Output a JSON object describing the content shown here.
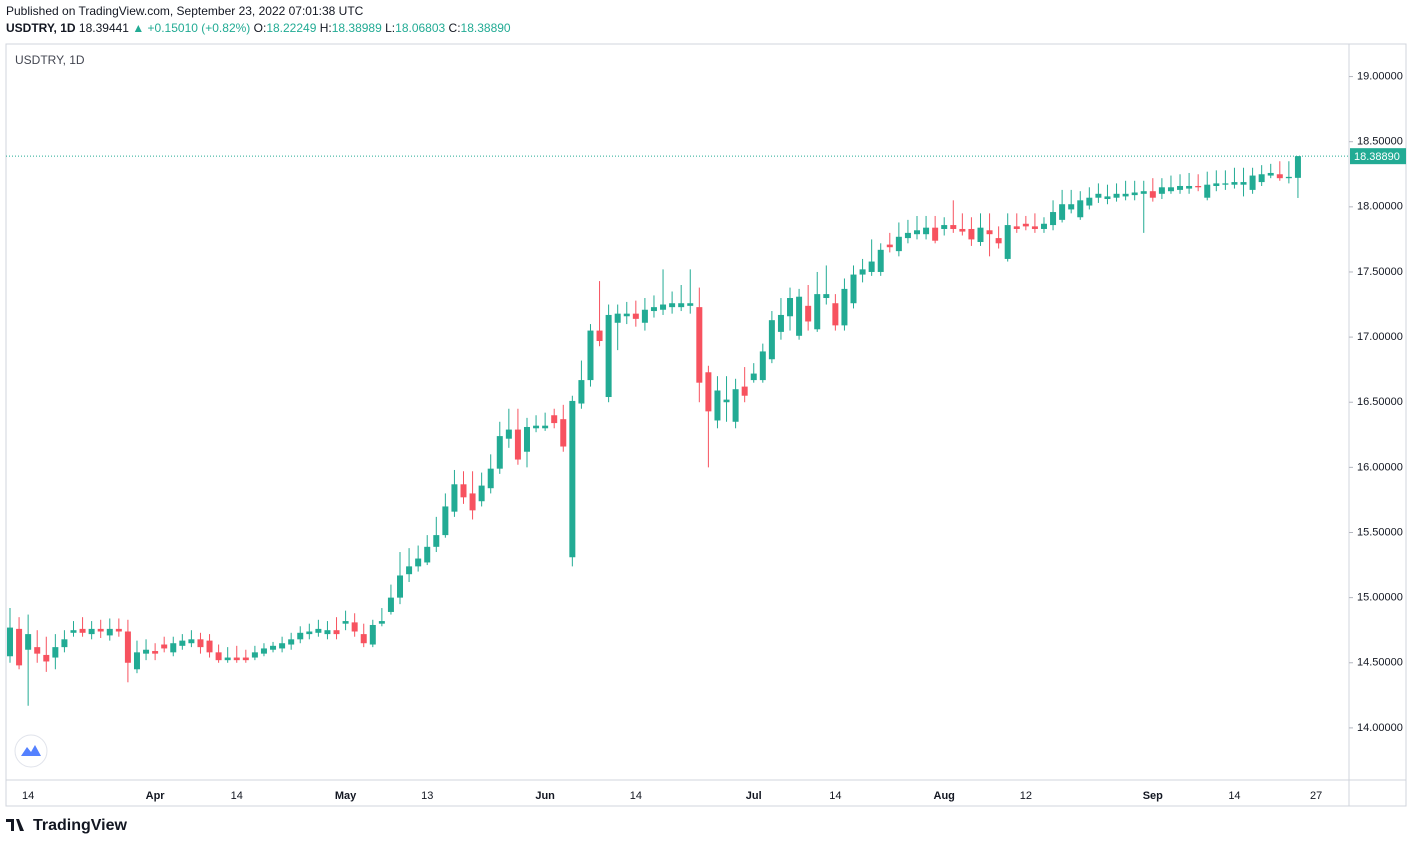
{
  "header": {
    "published": "Published on TradingView.com, September 23, 2022 07:01:38 UTC",
    "symbol": "USDTRY, 1D",
    "price": "18.39441",
    "change": "▲ +0.15010 (+0.82%)",
    "ohlc": [
      {
        "label": "O:",
        "value": "18.22249"
      },
      {
        "label": "H:",
        "value": "18.38989"
      },
      {
        "label": "L:",
        "value": "18.06803"
      },
      {
        "label": "C:",
        "value": "18.38890"
      }
    ]
  },
  "chart_data": {
    "type": "candlestick",
    "title": "USDTRY, 1D",
    "up_color": "#22ab94",
    "down_color": "#f7525f",
    "categories": [
      null,
      null,
      "14",
      null,
      null,
      null,
      null,
      null,
      null,
      null,
      null,
      null,
      null,
      null,
      null,
      null,
      "Apr",
      null,
      null,
      null,
      null,
      null,
      null,
      null,
      null,
      "14",
      null,
      null,
      null,
      null,
      null,
      null,
      null,
      null,
      null,
      null,
      null,
      "May",
      null,
      null,
      null,
      null,
      null,
      null,
      null,
      null,
      "13",
      null,
      null,
      null,
      null,
      null,
      null,
      null,
      null,
      null,
      null,
      null,
      null,
      "Jun",
      null,
      null,
      null,
      null,
      null,
      null,
      null,
      null,
      null,
      "14",
      null,
      null,
      null,
      null,
      null,
      null,
      null,
      null,
      null,
      null,
      null,
      null,
      "Jul",
      null,
      null,
      null,
      null,
      null,
      null,
      null,
      null,
      "14",
      null,
      null,
      null,
      null,
      null,
      null,
      null,
      null,
      null,
      null,
      null,
      "Aug",
      null,
      null,
      null,
      null,
      null,
      null,
      null,
      null,
      "12",
      null,
      null,
      null,
      null,
      null,
      null,
      null,
      null,
      null,
      null,
      null,
      null,
      null,
      "Sep",
      null,
      null,
      null,
      null,
      null,
      null,
      null,
      null,
      "14",
      null,
      null,
      null,
      null,
      null,
      null,
      null,
      null,
      "27"
    ],
    "open": [
      14.55,
      14.76,
      14.6,
      14.62,
      14.56,
      14.54,
      14.62,
      14.73,
      14.76,
      14.72,
      14.76,
      14.71,
      14.76,
      14.74,
      14.45,
      14.57,
      14.59,
      14.64,
      14.58,
      14.63,
      14.65,
      14.68,
      14.67,
      14.58,
      14.52,
      14.54,
      14.54,
      14.54,
      14.57,
      14.6,
      14.61,
      14.64,
      14.68,
      14.72,
      14.73,
      14.72,
      14.75,
      14.8,
      14.81,
      14.72,
      14.64,
      14.8,
      14.89,
      15.0,
      15.18,
      15.24,
      15.27,
      15.39,
      15.48,
      15.66,
      15.87,
      15.8,
      15.74,
      15.84,
      15.99,
      16.22,
      16.29,
      16.12,
      16.3,
      16.3,
      16.4,
      16.37,
      15.31,
      16.49,
      16.67,
      17.05,
      16.54,
      17.11,
      17.16,
      17.18,
      17.11,
      17.2,
      17.21,
      17.23,
      17.23,
      17.24,
      17.23,
      16.73,
      16.36,
      16.5,
      16.35,
      16.62,
      16.67,
      16.67,
      16.83,
      17.04,
      17.16,
      17.01,
      17.24,
      17.06,
      17.3,
      17.26,
      17.09,
      17.26,
      17.48,
      17.5,
      17.5,
      17.71,
      17.66,
      17.76,
      17.79,
      17.79,
      17.84,
      17.83,
      17.86,
      17.83,
      17.83,
      17.73,
      17.82,
      17.76,
      17.6,
      17.85,
      17.87,
      17.85,
      17.83,
      17.86,
      17.9,
      17.98,
      17.92,
      18.01,
      18.07,
      18.06,
      18.07,
      18.08,
      18.09,
      18.1,
      18.12,
      18.1,
      18.12,
      18.13,
      18.14,
      18.16,
      18.07,
      18.16,
      18.17,
      18.17,
      18.17,
      18.13,
      18.19,
      18.24,
      18.25,
      18.22,
      18.22249,
      null,
      null
    ],
    "high": [
      14.92,
      14.85,
      14.87,
      14.75,
      14.7,
      14.72,
      14.75,
      14.82,
      14.85,
      14.82,
      14.83,
      14.84,
      14.84,
      14.83,
      14.67,
      14.68,
      14.65,
      14.7,
      14.7,
      14.72,
      14.75,
      14.73,
      14.72,
      14.64,
      14.62,
      14.63,
      14.6,
      14.63,
      14.65,
      14.66,
      14.7,
      14.73,
      14.78,
      14.8,
      14.83,
      14.82,
      14.85,
      14.9,
      14.88,
      14.8,
      14.83,
      14.92,
      15.1,
      15.35,
      15.38,
      15.4,
      15.48,
      15.62,
      15.8,
      15.98,
      15.97,
      15.97,
      15.96,
      16.1,
      16.35,
      16.45,
      16.45,
      16.38,
      16.4,
      16.42,
      16.45,
      16.48,
      16.55,
      16.82,
      17.1,
      17.43,
      17.25,
      17.25,
      17.27,
      17.28,
      17.3,
      17.32,
      17.52,
      17.35,
      17.4,
      17.52,
      17.38,
      16.78,
      16.7,
      16.7,
      16.68,
      16.77,
      16.8,
      16.95,
      17.2,
      17.3,
      17.38,
      17.37,
      17.4,
      17.5,
      17.55,
      17.33,
      17.45,
      17.55,
      17.6,
      17.75,
      17.72,
      17.8,
      17.88,
      17.9,
      17.93,
      17.93,
      17.93,
      17.92,
      18.05,
      17.95,
      17.92,
      17.95,
      17.95,
      17.85,
      17.95,
      17.95,
      17.93,
      17.95,
      17.92,
      18.05,
      18.13,
      18.13,
      18.12,
      18.15,
      18.18,
      18.17,
      18.18,
      18.2,
      18.2,
      18.2,
      18.22,
      18.22,
      18.24,
      18.25,
      18.26,
      18.25,
      18.27,
      18.28,
      18.28,
      18.3,
      18.3,
      18.3,
      18.32,
      18.33,
      18.35,
      18.35,
      18.38989,
      null,
      null
    ],
    "low": [
      14.5,
      14.45,
      14.17,
      14.5,
      14.43,
      14.45,
      14.58,
      14.7,
      14.7,
      14.68,
      14.69,
      14.67,
      14.7,
      14.35,
      14.42,
      14.52,
      14.52,
      14.58,
      14.55,
      14.6,
      14.62,
      14.57,
      14.54,
      14.5,
      14.5,
      14.5,
      14.5,
      14.52,
      14.55,
      14.58,
      14.58,
      14.6,
      14.65,
      14.68,
      14.7,
      14.68,
      14.68,
      14.75,
      14.7,
      14.62,
      14.62,
      14.78,
      14.87,
      14.95,
      15.12,
      15.2,
      15.25,
      15.35,
      15.46,
      15.62,
      15.72,
      15.6,
      15.7,
      15.8,
      15.95,
      16.15,
      16.02,
      16.0,
      16.27,
      16.28,
      16.3,
      16.12,
      15.24,
      16.45,
      16.62,
      16.93,
      16.5,
      16.9,
      17.1,
      17.08,
      17.05,
      17.15,
      17.17,
      17.18,
      17.2,
      17.18,
      16.5,
      16.0,
      16.3,
      16.35,
      16.3,
      16.5,
      16.65,
      16.65,
      16.8,
      16.98,
      17.05,
      16.98,
      17.05,
      17.04,
      17.25,
      17.05,
      17.05,
      17.22,
      17.42,
      17.47,
      17.47,
      17.65,
      17.62,
      17.72,
      17.75,
      17.75,
      17.72,
      17.78,
      17.8,
      17.78,
      17.7,
      17.7,
      17.62,
      17.68,
      17.58,
      17.8,
      17.82,
      17.8,
      17.8,
      17.82,
      17.88,
      17.95,
      17.9,
      17.98,
      18.03,
      18.02,
      18.04,
      18.05,
      18.05,
      17.8,
      18.04,
      18.06,
      18.1,
      18.1,
      18.1,
      18.12,
      18.05,
      18.12,
      18.13,
      18.14,
      18.08,
      18.1,
      18.16,
      18.22,
      18.2,
      18.18,
      18.06803,
      null,
      null
    ],
    "close": [
      14.77,
      14.48,
      14.72,
      14.57,
      14.51,
      14.62,
      14.68,
      14.75,
      14.73,
      14.76,
      14.74,
      14.76,
      14.74,
      14.5,
      14.58,
      14.6,
      14.57,
      14.61,
      14.65,
      14.67,
      14.68,
      14.62,
      14.58,
      14.52,
      14.54,
      14.52,
      14.52,
      14.58,
      14.61,
      14.63,
      14.65,
      14.68,
      14.73,
      14.74,
      14.76,
      14.75,
      14.72,
      14.82,
      14.74,
      14.65,
      14.79,
      14.82,
      15.0,
      15.17,
      15.24,
      15.3,
      15.39,
      15.48,
      15.7,
      15.87,
      15.77,
      15.67,
      15.86,
      15.99,
      16.24,
      16.29,
      16.06,
      16.31,
      16.32,
      16.32,
      16.34,
      16.16,
      16.51,
      16.67,
      17.05,
      16.97,
      17.17,
      17.18,
      17.18,
      17.14,
      17.21,
      17.23,
      17.25,
      17.26,
      17.26,
      17.26,
      16.65,
      16.43,
      16.59,
      16.52,
      16.6,
      16.55,
      16.72,
      16.89,
      17.13,
      17.17,
      17.3,
      17.31,
      17.12,
      17.33,
      17.33,
      17.09,
      17.37,
      17.48,
      17.52,
      17.58,
      17.67,
      17.69,
      17.77,
      17.8,
      17.82,
      17.84,
      17.74,
      17.86,
      17.83,
      17.81,
      17.75,
      17.84,
      17.79,
      17.72,
      17.86,
      17.83,
      17.85,
      17.83,
      17.87,
      17.96,
      18.02,
      18.02,
      18.05,
      18.07,
      18.1,
      18.08,
      18.1,
      18.1,
      18.11,
      18.12,
      18.07,
      18.15,
      18.15,
      18.16,
      18.16,
      18.15,
      18.17,
      18.18,
      18.18,
      18.19,
      18.19,
      18.24,
      18.25,
      18.26,
      18.22,
      18.23,
      18.3889,
      null,
      null
    ],
    "last_price": {
      "value": 18.3889,
      "label": "18.38890"
    },
    "ylim": [
      13.6,
      19.25
    ],
    "yticks": [
      {
        "value": 14,
        "label": "14.00000"
      },
      {
        "value": 14.5,
        "label": "14.50000"
      },
      {
        "value": 15,
        "label": "15.00000"
      },
      {
        "value": 15.5,
        "label": "15.50000"
      },
      {
        "value": 16,
        "label": "16.00000"
      },
      {
        "value": 16.5,
        "label": "16.50000"
      },
      {
        "value": 17,
        "label": "17.00000"
      },
      {
        "value": 17.5,
        "label": "17.50000"
      },
      {
        "value": 18,
        "label": "18.00000"
      },
      {
        "value": 18.5,
        "label": "18.50000"
      },
      {
        "value": 19,
        "label": "19.00000"
      }
    ],
    "grid": false
  },
  "footer": {
    "brand": "TradingView"
  }
}
